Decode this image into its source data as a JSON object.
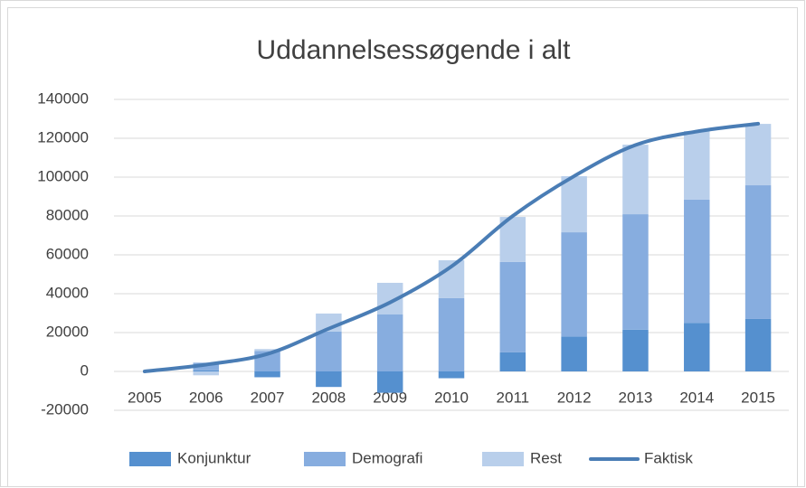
{
  "chart_data": {
    "type": "bar",
    "stacked": true,
    "title": "Uddannelsessøgende i alt",
    "categories": [
      "2005",
      "2006",
      "2007",
      "2008",
      "2009",
      "2010",
      "2011",
      "2012",
      "2013",
      "2014",
      "2015"
    ],
    "series": [
      {
        "name": "Konjunktur",
        "color": "#5590cf",
        "values": [
          0,
          500,
          -3000,
          -8000,
          -11000,
          -3500,
          9800,
          18000,
          21500,
          25000,
          27000
        ]
      },
      {
        "name": "Demografi",
        "color": "#87addf",
        "values": [
          0,
          4000,
          10500,
          20500,
          29300,
          37700,
          46500,
          53600,
          59400,
          63400,
          68800
        ]
      },
      {
        "name": "Rest",
        "color": "#b9cfeb",
        "values": [
          0,
          -2000,
          1000,
          9300,
          16300,
          19500,
          23200,
          28900,
          35800,
          35300,
          31600
        ]
      },
      {
        "name": "Faktisk",
        "type": "line",
        "color": "#4a7db5",
        "values": [
          0,
          3500,
          9000,
          22000,
          35500,
          54000,
          80000,
          100500,
          116500,
          123500,
          127500
        ]
      }
    ],
    "ylim": [
      -20000,
      140000
    ],
    "yticks": [
      -20000,
      0,
      20000,
      40000,
      60000,
      80000,
      100000,
      120000,
      140000
    ],
    "grid": true,
    "legend": "bottom"
  }
}
